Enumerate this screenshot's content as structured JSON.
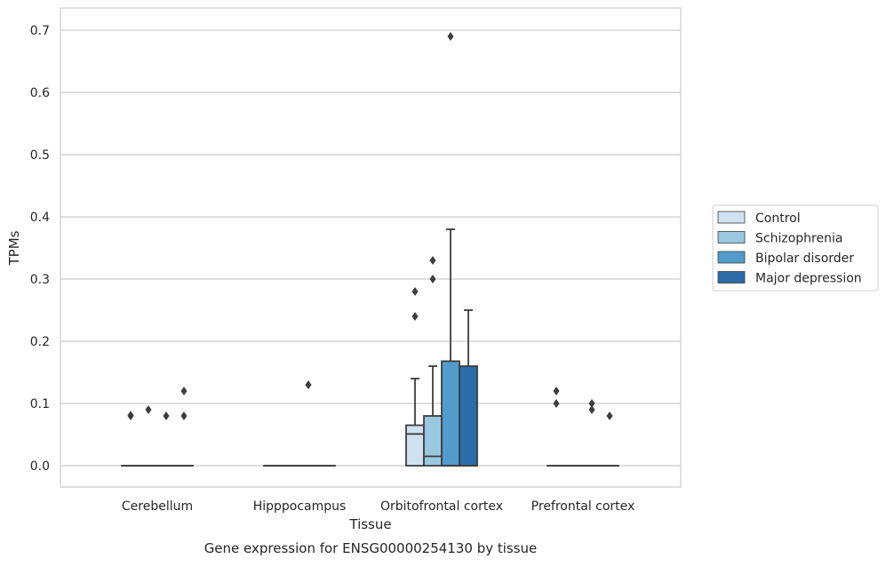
{
  "chart_data": {
    "type": "box",
    "xlabel": "Tissue",
    "ylabel": "TPMs",
    "caption": "Gene expression for ENSG00000254130 by tissue",
    "categories": [
      "Cerebellum",
      "Hipppocampus",
      "Orbitofrontal cortex",
      "Prefrontal cortex"
    ],
    "ylim": [
      -0.035,
      0.725
    ],
    "yticks": [
      0.0,
      0.1,
      0.2,
      0.3,
      0.4,
      0.5,
      0.6,
      0.7
    ],
    "ytick_labels": [
      "0.0",
      "0.1",
      "0.2",
      "0.3",
      "0.4",
      "0.5",
      "0.6",
      "0.7"
    ],
    "grid": "y",
    "legend_position": "right",
    "series": [
      {
        "name": "Control",
        "color": "#d0e1f1",
        "boxes": [
          {
            "category": "Cerebellum",
            "q1": 0,
            "median": 0,
            "q3": 0,
            "whisker_low": 0,
            "whisker_high": 0,
            "outliers": [
              0.08,
              0.081
            ]
          },
          {
            "category": "Hipppocampus",
            "q1": 0,
            "median": 0,
            "q3": 0,
            "whisker_low": 0,
            "whisker_high": 0,
            "outliers": []
          },
          {
            "category": "Orbitofrontal cortex",
            "q1": 0,
            "median": 0.051,
            "q3": 0.065,
            "whisker_low": 0,
            "whisker_high": 0.14,
            "outliers": [
              0.24,
              0.28
            ]
          },
          {
            "category": "Prefrontal cortex",
            "q1": 0,
            "median": 0,
            "q3": 0,
            "whisker_low": 0,
            "whisker_high": 0,
            "outliers": [
              0.1,
              0.12
            ]
          }
        ]
      },
      {
        "name": "Schizophrenia",
        "color": "#9ac8e0",
        "boxes": [
          {
            "category": "Cerebellum",
            "q1": 0,
            "median": 0,
            "q3": 0,
            "whisker_low": 0,
            "whisker_high": 0,
            "outliers": [
              0.09
            ]
          },
          {
            "category": "Hipppocampus",
            "q1": 0,
            "median": 0,
            "q3": 0,
            "whisker_low": 0,
            "whisker_high": 0,
            "outliers": []
          },
          {
            "category": "Orbitofrontal cortex",
            "q1": 0,
            "median": 0.015,
            "q3": 0.08,
            "whisker_low": 0,
            "whisker_high": 0.16,
            "outliers": [
              0.3,
              0.33
            ]
          },
          {
            "category": "Prefrontal cortex",
            "q1": 0,
            "median": 0,
            "q3": 0,
            "whisker_low": 0,
            "whisker_high": 0,
            "outliers": []
          }
        ]
      },
      {
        "name": "Bipolar disorder",
        "color": "#519ccc",
        "boxes": [
          {
            "category": "Cerebellum",
            "q1": 0,
            "median": 0,
            "q3": 0,
            "whisker_low": 0,
            "whisker_high": 0,
            "outliers": [
              0.08
            ]
          },
          {
            "category": "Hipppocampus",
            "q1": 0,
            "median": 0,
            "q3": 0,
            "whisker_low": 0,
            "whisker_high": 0,
            "outliers": [
              0.13
            ]
          },
          {
            "category": "Orbitofrontal cortex",
            "q1": 0,
            "median": 0,
            "q3": 0.168,
            "whisker_low": 0,
            "whisker_high": 0.38,
            "outliers": [
              0.69
            ]
          },
          {
            "category": "Prefrontal cortex",
            "q1": 0,
            "median": 0,
            "q3": 0,
            "whisker_low": 0,
            "whisker_high": 0,
            "outliers": [
              0.09,
              0.1
            ]
          }
        ]
      },
      {
        "name": "Major depression",
        "color": "#2b6ca9",
        "boxes": [
          {
            "category": "Cerebellum",
            "q1": 0,
            "median": 0,
            "q3": 0,
            "whisker_low": 0,
            "whisker_high": 0,
            "outliers": [
              0.08,
              0.12
            ]
          },
          {
            "category": "Hipppocampus",
            "q1": 0,
            "median": 0,
            "q3": 0,
            "whisker_low": 0,
            "whisker_high": 0,
            "outliers": []
          },
          {
            "category": "Orbitofrontal cortex",
            "q1": 0,
            "median": 0,
            "q3": 0.16,
            "whisker_low": 0,
            "whisker_high": 0.25,
            "outliers": []
          },
          {
            "category": "Prefrontal cortex",
            "q1": 0,
            "median": 0,
            "q3": 0,
            "whisker_low": 0,
            "whisker_high": 0,
            "outliers": [
              0.08
            ]
          }
        ]
      }
    ]
  }
}
